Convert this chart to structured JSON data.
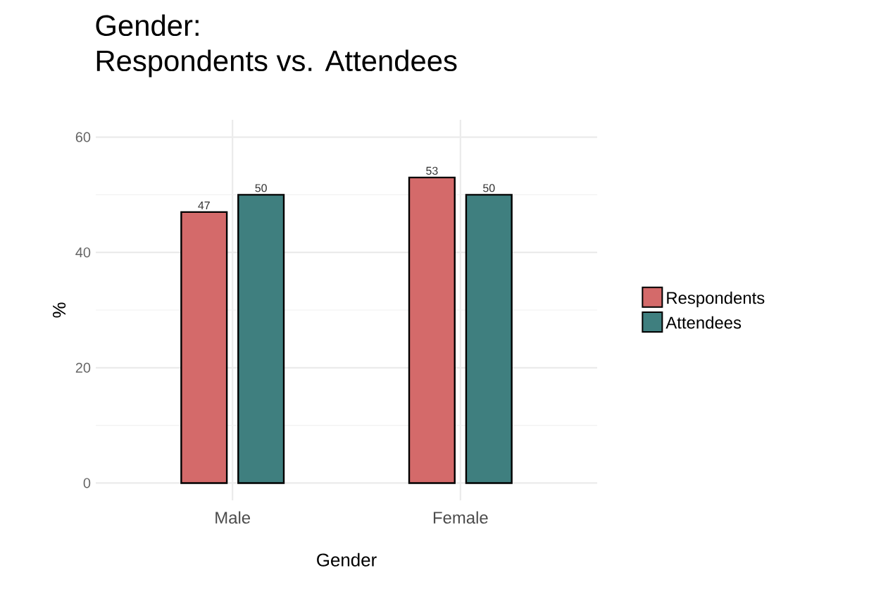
{
  "chart_data": {
    "type": "bar",
    "title": "Gender:",
    "subtitle": "Respondents vs. Attendees",
    "xlabel": "Gender",
    "ylabel": "%",
    "categories": [
      "Male",
      "Female"
    ],
    "series": [
      {
        "name": "Respondents",
        "color": "#d46a6a",
        "values": [
          47,
          53
        ]
      },
      {
        "name": "Attendees",
        "color": "#3f7f7f",
        "values": [
          50,
          50
        ]
      }
    ],
    "ylim": [
      -3,
      63
    ],
    "yticks": [
      0,
      20,
      40,
      60
    ],
    "grid": true,
    "legend": "right",
    "data_labels": true
  }
}
